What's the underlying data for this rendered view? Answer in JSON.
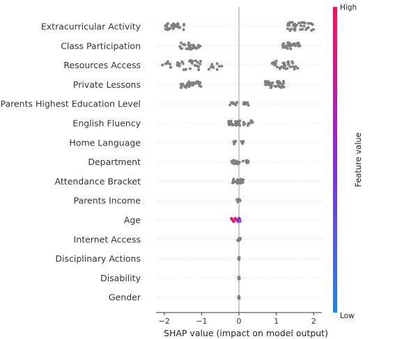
{
  "chart_data": {
    "type": "scatter",
    "subtype": "shap-beeswarm-summary",
    "xlabel": "SHAP value (impact on model output)",
    "xlim": [
      -2.22,
      2.22
    ],
    "xticks": [
      -2,
      -1,
      0,
      1,
      2
    ],
    "zero_line": true,
    "colorbar": {
      "label": "Feature value",
      "high_label": "High",
      "low_label": "Low",
      "high_color": "#ff0d57",
      "low_color": "#1e88e5"
    },
    "default_point_color": "#808080",
    "features": [
      {
        "name": "Extracurricular Activity",
        "clusters": [
          {
            "from": -2.0,
            "to": -1.45,
            "count": 34
          },
          {
            "from": 1.3,
            "to": 2.05,
            "count": 36
          }
        ]
      },
      {
        "name": "Class Participation",
        "clusters": [
          {
            "from": -1.6,
            "to": -1.02,
            "count": 26
          },
          {
            "from": 1.15,
            "to": 1.65,
            "count": 30
          }
        ]
      },
      {
        "name": "Resources Access",
        "clusters": [
          {
            "from": -2.05,
            "to": -0.4,
            "count": 40
          },
          {
            "from": 0.88,
            "to": 1.6,
            "count": 36
          }
        ]
      },
      {
        "name": "Private Lessons",
        "clusters": [
          {
            "from": -1.55,
            "to": -1.0,
            "count": 26
          },
          {
            "from": 0.7,
            "to": 1.22,
            "count": 30
          }
        ]
      },
      {
        "name": "Parents Highest Education Level",
        "clusters": [
          {
            "from": -0.25,
            "to": -0.05,
            "count": 10
          },
          {
            "from": 0.12,
            "to": 0.28,
            "count": 10
          }
        ]
      },
      {
        "name": "English Fluency",
        "clusters": [
          {
            "from": -0.3,
            "to": 0.03,
            "count": 22
          },
          {
            "from": 0.08,
            "to": 0.45,
            "count": 10
          }
        ]
      },
      {
        "name": "Home Language",
        "clusters": [
          {
            "from": -0.15,
            "to": -0.05,
            "count": 6
          },
          {
            "from": 0.05,
            "to": 0.12,
            "count": 6
          }
        ]
      },
      {
        "name": "Department",
        "clusters": [
          {
            "from": -0.2,
            "to": 0.05,
            "count": 14
          },
          {
            "from": 0.08,
            "to": 0.28,
            "count": 8
          }
        ]
      },
      {
        "name": "Attendance Bracket",
        "clusters": [
          {
            "from": -0.18,
            "to": 0.12,
            "count": 18
          }
        ]
      },
      {
        "name": "Parents Income",
        "clusters": [
          {
            "from": -0.06,
            "to": 0.06,
            "count": 10
          }
        ]
      },
      {
        "name": "Age",
        "clusters": [],
        "special": "age"
      },
      {
        "name": "Internet Access",
        "clusters": [
          {
            "from": -0.04,
            "to": 0.04,
            "count": 10
          }
        ]
      },
      {
        "name": "Disciplinary Actions",
        "clusters": [
          {
            "from": -0.01,
            "to": 0.01,
            "count": 10
          }
        ]
      },
      {
        "name": "Disability",
        "clusters": [
          {
            "from": -0.01,
            "to": 0.01,
            "count": 10
          }
        ]
      },
      {
        "name": "Gender",
        "clusters": [
          {
            "from": -0.01,
            "to": 0.01,
            "count": 10
          }
        ]
      }
    ],
    "age_points": [
      {
        "x": -0.2,
        "c": "#ff0d57"
      },
      {
        "x": -0.17,
        "c": "#ff0d57"
      },
      {
        "x": -0.14,
        "c": "#f2106a"
      },
      {
        "x": -0.1,
        "c": "#e01385"
      },
      {
        "x": -0.06,
        "c": "#c51aa0"
      },
      {
        "x": -0.02,
        "c": "#a61fb8"
      },
      {
        "x": 0.0,
        "c": "#8a2be2"
      },
      {
        "x": 0.02,
        "c": "#7b3fe4"
      },
      {
        "x": 0.03,
        "c": "#6a5cd6"
      },
      {
        "x": 0.01,
        "c": "#9326d0"
      },
      {
        "x": -0.01,
        "c": "#b31ca8"
      },
      {
        "x": 0.02,
        "c": "#5c6fdc"
      }
    ]
  }
}
